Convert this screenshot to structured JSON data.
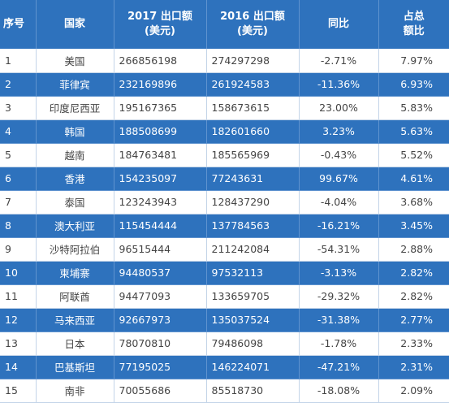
{
  "header": {
    "rank": "序号",
    "country": "国家",
    "exports_2017_line1": "2017 出口额",
    "exports_2017_line2": "(美元)",
    "exports_2016_line1": "2016 出口额",
    "exports_2016_line2": "(美元)",
    "yoy": "同比",
    "share_line1": "占总",
    "share_line2": "额比"
  },
  "rows": [
    {
      "rank": "1",
      "country": "美国",
      "exp2017": "266856198",
      "exp2016": "274297298",
      "yoy": "-2.71%",
      "share": "7.97%"
    },
    {
      "rank": "2",
      "country": "菲律宾",
      "exp2017": "232169896",
      "exp2016": "261924583",
      "yoy": "-11.36%",
      "share": "6.93%"
    },
    {
      "rank": "3",
      "country": "印度尼西亚",
      "exp2017": "195167365",
      "exp2016": "158673615",
      "yoy": "23.00%",
      "share": "5.83%"
    },
    {
      "rank": "4",
      "country": "韩国",
      "exp2017": "188508699",
      "exp2016": "182601660",
      "yoy": "3.23%",
      "share": "5.63%"
    },
    {
      "rank": "5",
      "country": "越南",
      "exp2017": "184763481",
      "exp2016": "185565969",
      "yoy": "-0.43%",
      "share": "5.52%"
    },
    {
      "rank": "6",
      "country": "香港",
      "exp2017": "154235097",
      "exp2016": "77243631",
      "yoy": "99.67%",
      "share": "4.61%"
    },
    {
      "rank": "7",
      "country": "泰国",
      "exp2017": "123243943",
      "exp2016": "128437290",
      "yoy": "-4.04%",
      "share": "3.68%"
    },
    {
      "rank": "8",
      "country": "澳大利亚",
      "exp2017": "115454444",
      "exp2016": "137784563",
      "yoy": "-16.21%",
      "share": "3.45%"
    },
    {
      "rank": "9",
      "country": "沙特阿拉伯",
      "exp2017": "96515444",
      "exp2016": "211242084",
      "yoy": "-54.31%",
      "share": "2.88%"
    },
    {
      "rank": "10",
      "country": "柬埔寨",
      "exp2017": "94480537",
      "exp2016": "97532113",
      "yoy": "-3.13%",
      "share": "2.82%"
    },
    {
      "rank": "11",
      "country": "阿联酋",
      "exp2017": "94477093",
      "exp2016": "133659705",
      "yoy": "-29.32%",
      "share": "2.82%"
    },
    {
      "rank": "12",
      "country": "马来西亚",
      "exp2017": "92667973",
      "exp2016": "135037524",
      "yoy": "-31.38%",
      "share": "2.77%"
    },
    {
      "rank": "13",
      "country": "日本",
      "exp2017": "78070810",
      "exp2016": "79486098",
      "yoy": "-1.78%",
      "share": "2.33%"
    },
    {
      "rank": "14",
      "country": "巴基斯坦",
      "exp2017": "77195025",
      "exp2016": "146224071",
      "yoy": "-47.21%",
      "share": "2.31%"
    },
    {
      "rank": "15",
      "country": "南非",
      "exp2017": "70055686",
      "exp2016": "85518730",
      "yoy": "-18.08%",
      "share": "2.09%"
    }
  ]
}
